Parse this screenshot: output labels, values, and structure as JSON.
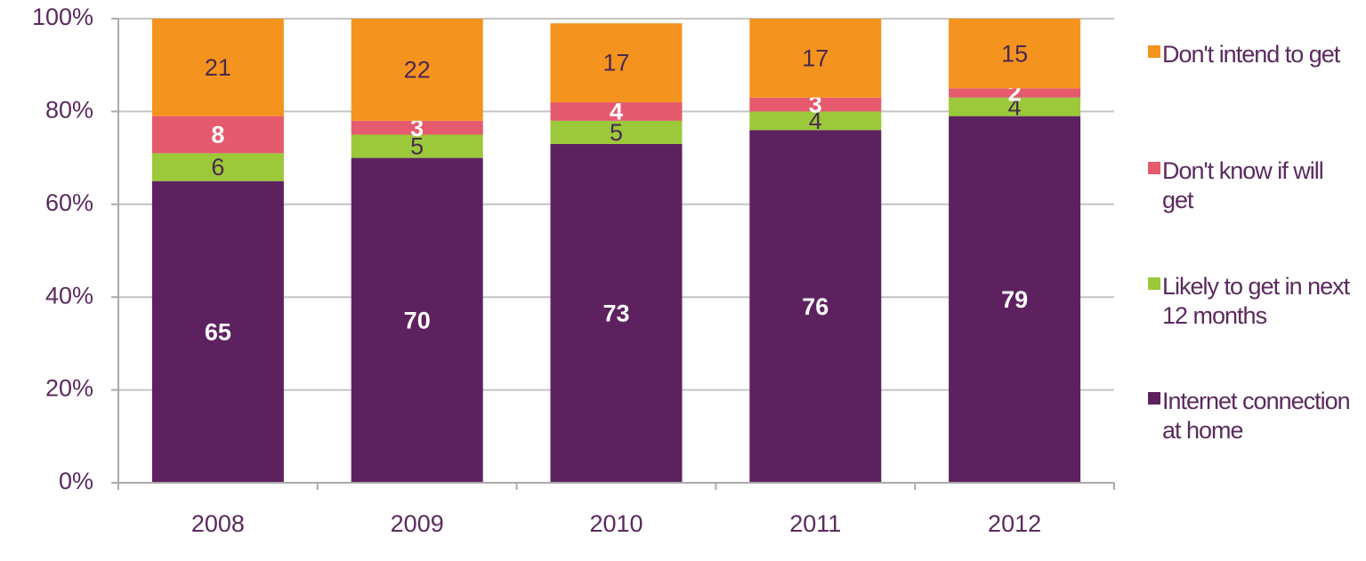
{
  "chart_data": {
    "type": "stacked_bar",
    "categories": [
      "2008",
      "2009",
      "2010",
      "2011",
      "2012"
    ],
    "series": [
      {
        "name": "Internet connection at home",
        "color": "#5e2160",
        "label_color": "#ffffff",
        "values": [
          65,
          70,
          73,
          76,
          79
        ]
      },
      {
        "name": "Likely to get in next 12 months",
        "color": "#9bc93a",
        "label_color": "#4a2a4e",
        "values": [
          6,
          5,
          5,
          4,
          4
        ]
      },
      {
        "name": "Don't know if will get",
        "color": "#e55a6d",
        "label_color": "#ffffff",
        "values": [
          8,
          3,
          4,
          3,
          2
        ]
      },
      {
        "name": "Don't intend to get",
        "color": "#f5931f",
        "label_color": "#4a2a4e",
        "values": [
          21,
          22,
          17,
          17,
          15
        ]
      }
    ],
    "ylim": [
      0,
      100
    ],
    "yticks": [
      {
        "value": 0,
        "label": "0%"
      },
      {
        "value": 20,
        "label": "20%"
      },
      {
        "value": 40,
        "label": "40%"
      },
      {
        "value": 60,
        "label": "60%"
      },
      {
        "value": 80,
        "label": "80%"
      },
      {
        "value": 100,
        "label": "100%"
      }
    ],
    "grid": true
  }
}
